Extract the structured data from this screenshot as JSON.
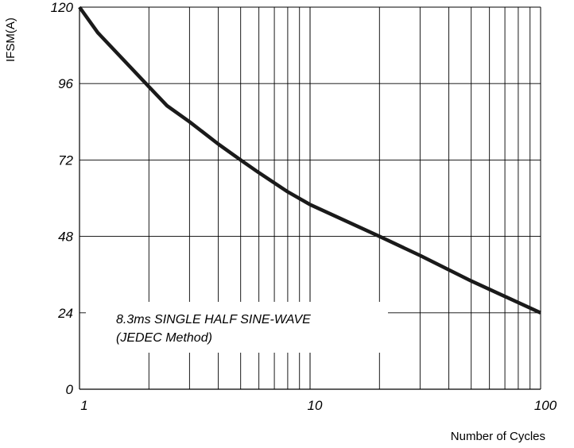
{
  "chart_data": {
    "type": "line",
    "xscale": "log",
    "xlim": [
      1,
      100
    ],
    "ylim": [
      0,
      120
    ],
    "xticks": [
      "1",
      "10",
      "100"
    ],
    "yticks": [
      "0",
      "24",
      "48",
      "72",
      "96",
      "120"
    ],
    "xlabel": "Number of Cycles",
    "ylabel": "IFSM(A)",
    "grid": true,
    "annotation": [
      "8.3ms SINGLE HALF SINE-WAVE",
      "(JEDEC Method)"
    ],
    "series": [
      {
        "x": [
          1,
          1.2,
          2,
          2.4,
          3,
          4,
          5,
          6,
          8,
          10,
          20,
          30,
          50,
          100
        ],
        "y": [
          120,
          112,
          95,
          89,
          84,
          77,
          72,
          68,
          62,
          58,
          48,
          42,
          34,
          24
        ]
      }
    ],
    "colors": {
      "line": "#1a1a1a",
      "grid": "#000000"
    }
  }
}
